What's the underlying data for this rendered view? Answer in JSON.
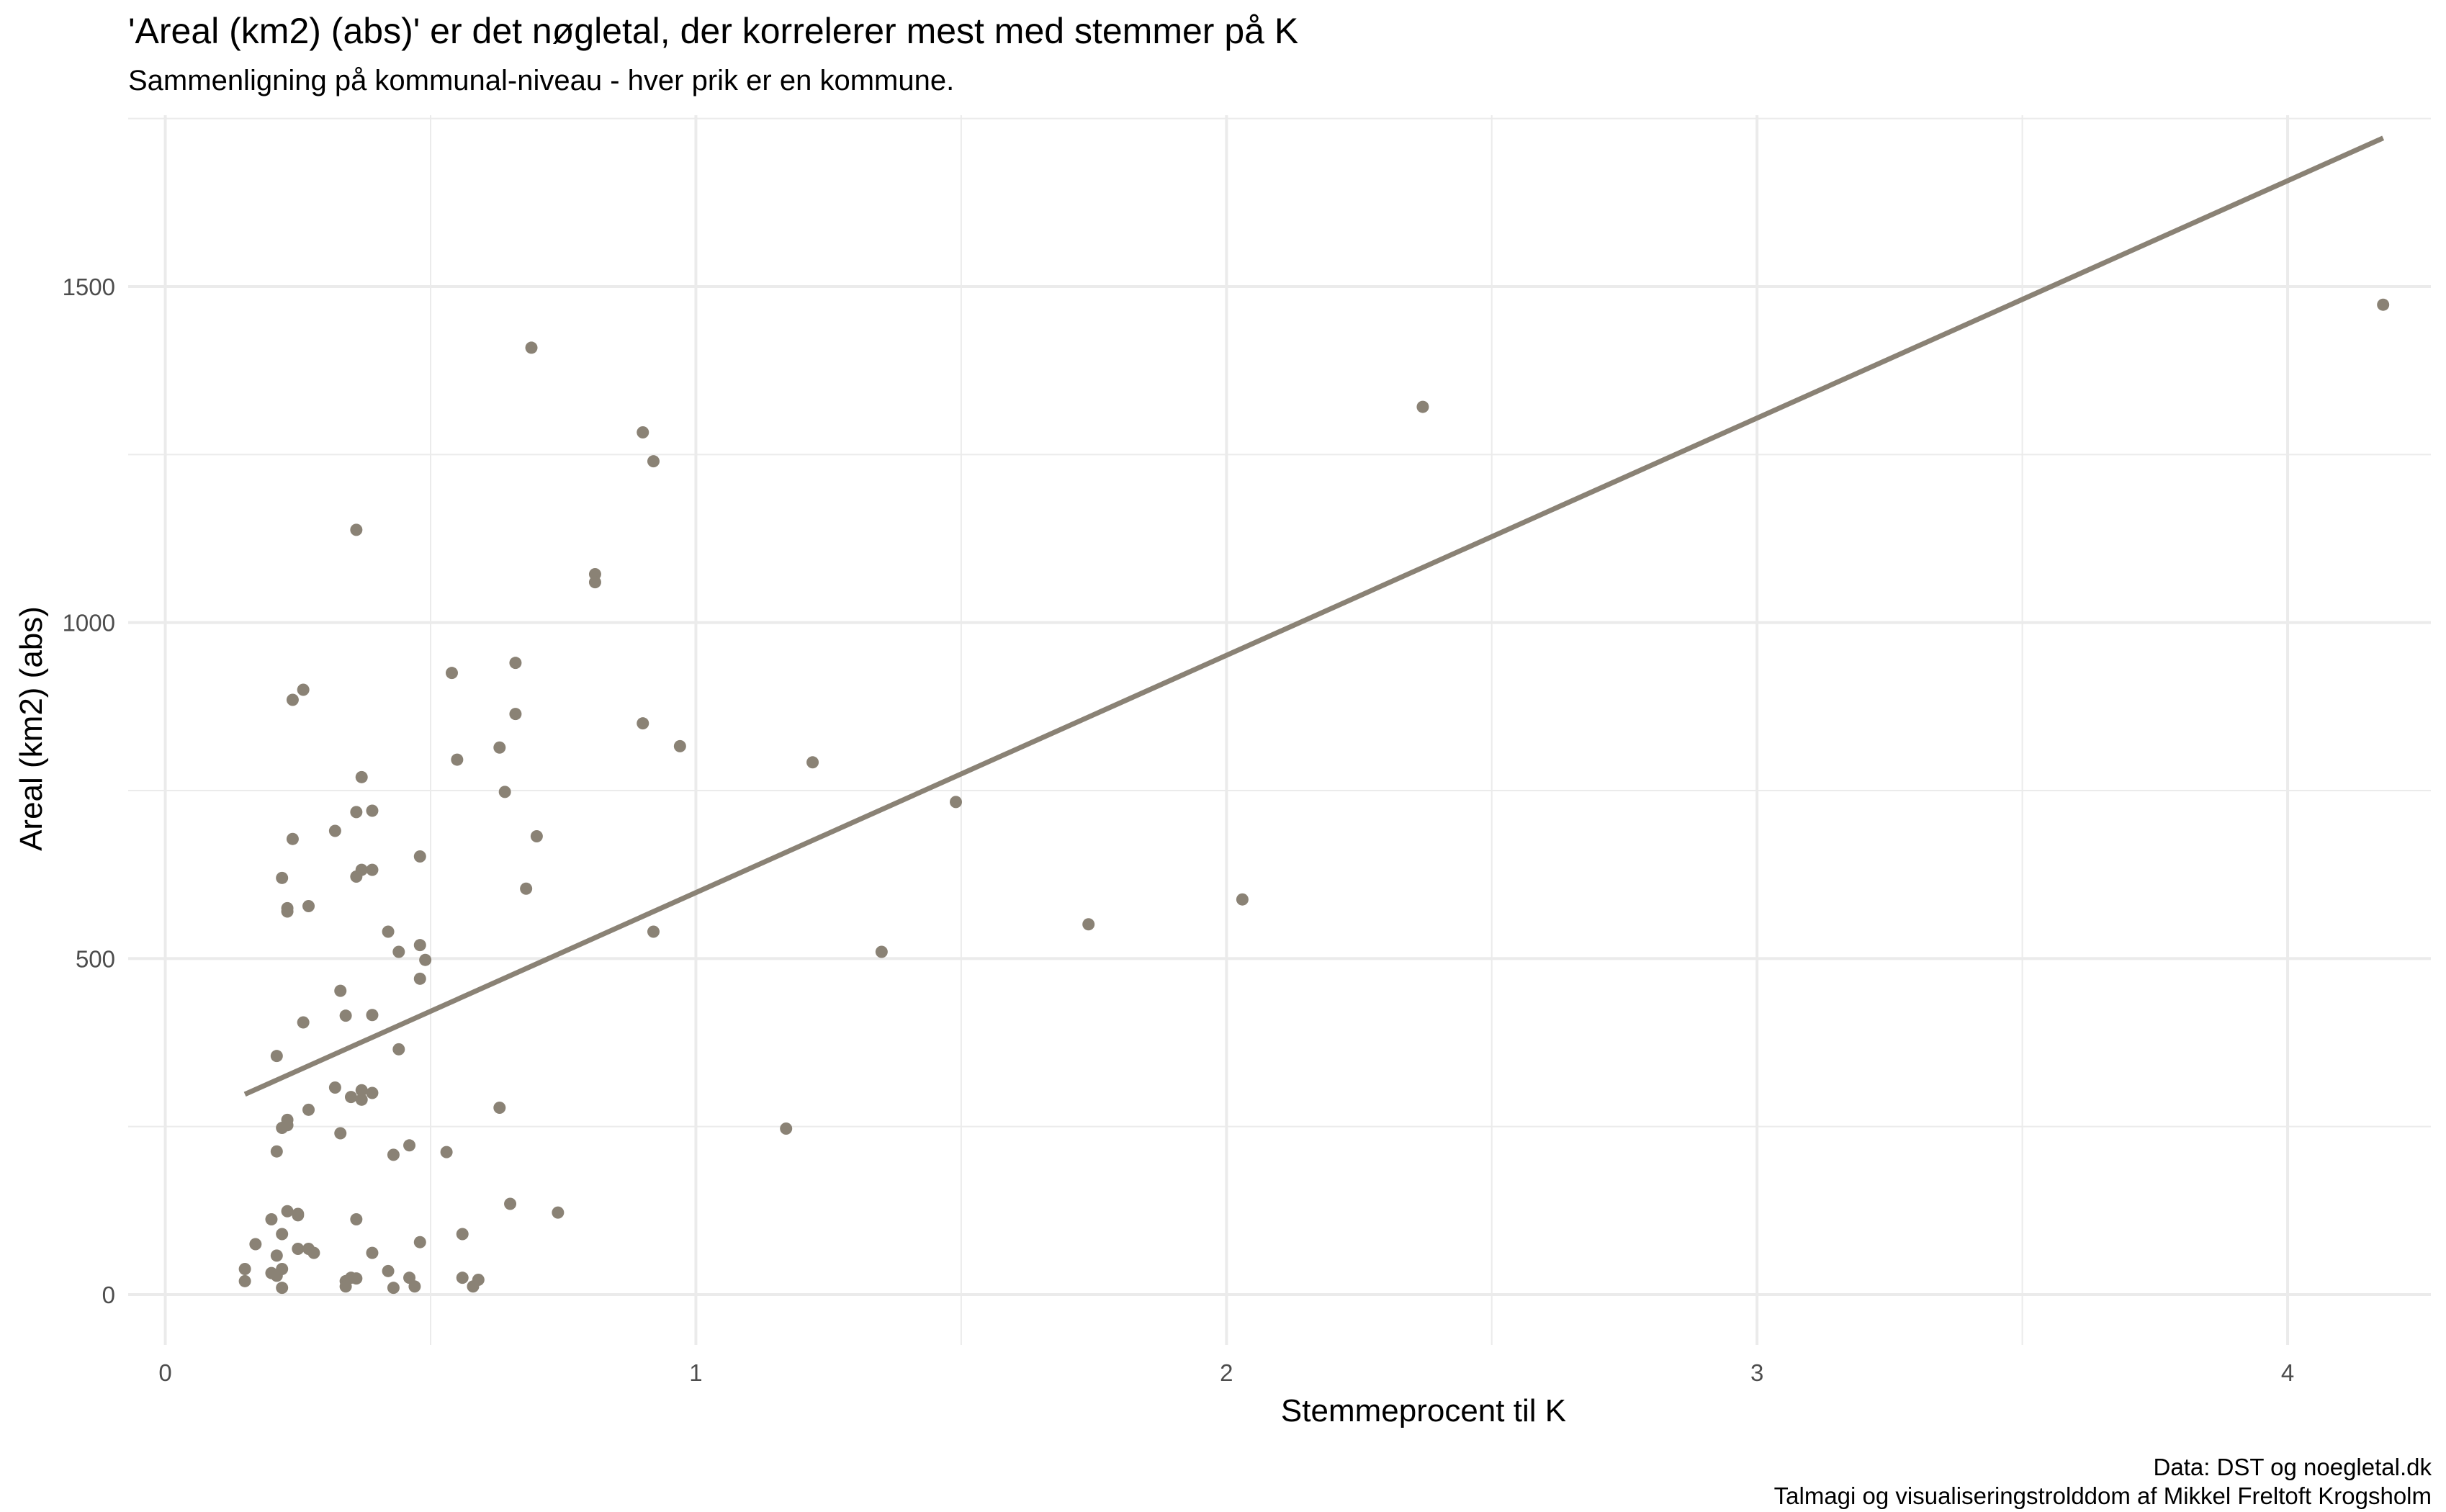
{
  "chart_data": {
    "type": "scatter",
    "title": "'Areal (km2) (abs)' er det nøgletal, der korrelerer mest med stemmer på K",
    "subtitle": "Sammenligning på kommunal-niveau - hver prik er en kommune.",
    "xlabel": "Stemmeprocent til K",
    "ylabel": "Areal (km2) (abs)",
    "xlim": [
      -0.07,
      4.27
    ],
    "ylim": [
      -75,
      1755
    ],
    "x_ticks": [
      0,
      1,
      2,
      3,
      4
    ],
    "y_ticks": [
      0,
      500,
      1000,
      1500
    ],
    "grid": true,
    "colors": {
      "points": "#8a8275",
      "trend": "#8a8275",
      "grid": "#ebebeb"
    },
    "trend_line": {
      "x": [
        0.15,
        4.18
      ],
      "y": [
        298,
        1721
      ]
    },
    "points": [
      [
        0.15,
        38
      ],
      [
        0.15,
        20
      ],
      [
        0.17,
        75
      ],
      [
        0.2,
        112
      ],
      [
        0.2,
        32
      ],
      [
        0.21,
        28
      ],
      [
        0.21,
        58
      ],
      [
        0.21,
        355
      ],
      [
        0.21,
        213
      ],
      [
        0.22,
        90
      ],
      [
        0.22,
        38
      ],
      [
        0.22,
        10
      ],
      [
        0.22,
        620
      ],
      [
        0.22,
        248
      ],
      [
        0.23,
        124
      ],
      [
        0.23,
        575
      ],
      [
        0.23,
        570
      ],
      [
        0.23,
        252
      ],
      [
        0.23,
        260
      ],
      [
        0.24,
        885
      ],
      [
        0.24,
        678
      ],
      [
        0.25,
        120
      ],
      [
        0.25,
        118
      ],
      [
        0.25,
        68
      ],
      [
        0.26,
        900
      ],
      [
        0.26,
        405
      ],
      [
        0.27,
        275
      ],
      [
        0.27,
        578
      ],
      [
        0.27,
        68
      ],
      [
        0.28,
        62
      ],
      [
        0.32,
        690
      ],
      [
        0.32,
        308
      ],
      [
        0.33,
        452
      ],
      [
        0.33,
        240
      ],
      [
        0.34,
        415
      ],
      [
        0.34,
        20
      ],
      [
        0.34,
        12
      ],
      [
        0.35,
        294
      ],
      [
        0.35,
        25
      ],
      [
        0.36,
        24
      ],
      [
        0.36,
        622
      ],
      [
        0.36,
        718
      ],
      [
        0.36,
        112
      ],
      [
        0.36,
        1138
      ],
      [
        0.37,
        770
      ],
      [
        0.37,
        632
      ],
      [
        0.37,
        290
      ],
      [
        0.37,
        304
      ],
      [
        0.39,
        416
      ],
      [
        0.39,
        300
      ],
      [
        0.39,
        62
      ],
      [
        0.39,
        632
      ],
      [
        0.39,
        720
      ],
      [
        0.42,
        540
      ],
      [
        0.42,
        35
      ],
      [
        0.43,
        208
      ],
      [
        0.43,
        10
      ],
      [
        0.44,
        365
      ],
      [
        0.44,
        510
      ],
      [
        0.46,
        222
      ],
      [
        0.46,
        25
      ],
      [
        0.47,
        12
      ],
      [
        0.48,
        520
      ],
      [
        0.48,
        78
      ],
      [
        0.48,
        470
      ],
      [
        0.48,
        652
      ],
      [
        0.49,
        498
      ],
      [
        0.53,
        212
      ],
      [
        0.54,
        925
      ],
      [
        0.55,
        796
      ],
      [
        0.56,
        25
      ],
      [
        0.56,
        90
      ],
      [
        0.58,
        12
      ],
      [
        0.59,
        22
      ],
      [
        0.63,
        814
      ],
      [
        0.63,
        278
      ],
      [
        0.64,
        748
      ],
      [
        0.65,
        135
      ],
      [
        0.66,
        940
      ],
      [
        0.66,
        864
      ],
      [
        0.68,
        604
      ],
      [
        0.69,
        1409
      ],
      [
        0.7,
        682
      ],
      [
        0.74,
        122
      ],
      [
        0.81,
        1072
      ],
      [
        0.81,
        1060
      ],
      [
        0.9,
        850
      ],
      [
        0.9,
        1283
      ],
      [
        0.92,
        1240
      ],
      [
        0.92,
        540
      ],
      [
        0.97,
        816
      ],
      [
        1.17,
        247
      ],
      [
        1.22,
        792
      ],
      [
        1.35,
        510
      ],
      [
        1.49,
        733
      ],
      [
        1.74,
        551
      ],
      [
        2.03,
        588
      ],
      [
        2.37,
        1321
      ],
      [
        4.18,
        1473
      ]
    ]
  },
  "caption": {
    "line1": "Data: DST og noegletal.dk",
    "line2": "Talmagi og visualiseringstrolddom af Mikkel Freltoft Krogsholm"
  }
}
